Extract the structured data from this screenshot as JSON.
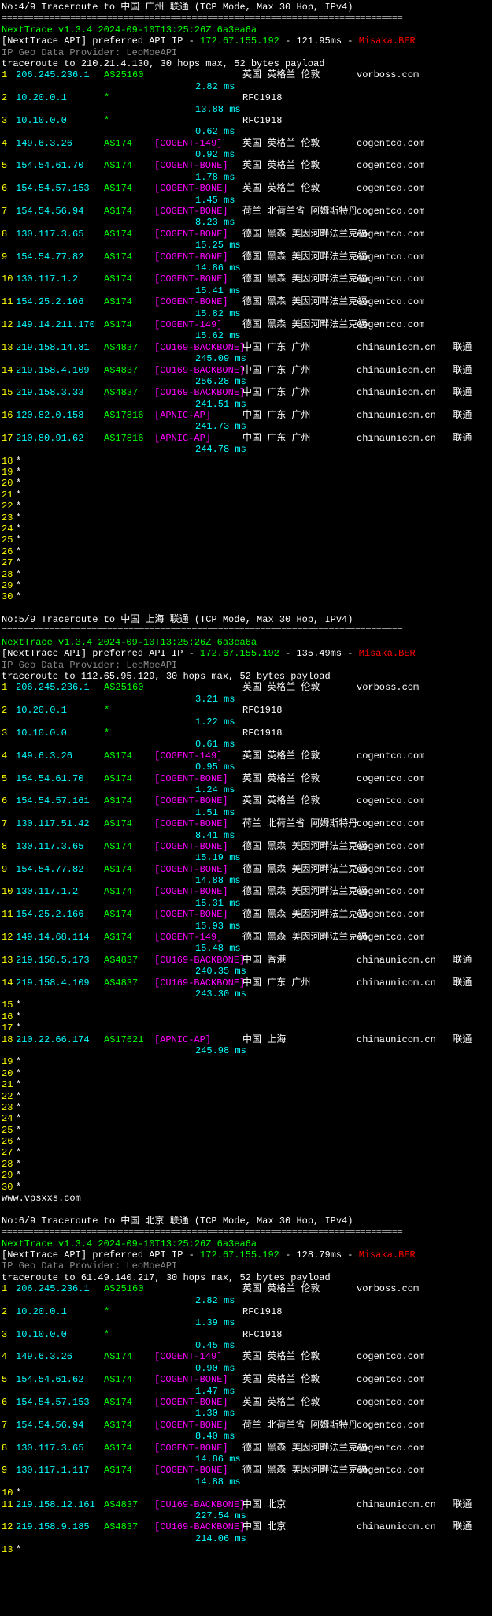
{
  "traces": [
    {
      "header": "No:4/9 Traceroute to 中国 广州 联通 (TCP Mode, Max 30 Hop, IPv4)",
      "nt": "NextTrace v1.3.4 2024-09-10T13:25:26Z 6a3ea6a",
      "api_pre": "[NextTrace API] preferred API IP - ",
      "api_ip": "172.67.155.192",
      "api_ms": " - 121.95ms - ",
      "api_host": "Misaka.BER",
      "prov": "IP Geo Data Provider: LeoMoeAPI",
      "target": "traceroute to 210.21.4.130, 30 hops max, 52 bytes payload",
      "hops": [
        {
          "n": "1",
          "ip": "206.245.236.1",
          "asn": "AS25160",
          "net": "",
          "loc": "英国 英格兰 伦敦",
          "dom": "vorboss.com",
          "ms": "2.82 ms"
        },
        {
          "n": "2",
          "ip": "10.20.0.1",
          "asn": "*",
          "net": "",
          "loc": "RFC1918",
          "dom": "",
          "ms": "13.88 ms"
        },
        {
          "n": "3",
          "ip": "10.10.0.0",
          "asn": "*",
          "net": "",
          "loc": "RFC1918",
          "dom": "",
          "ms": "0.62 ms"
        },
        {
          "n": "4",
          "ip": "149.6.3.26",
          "asn": "AS174",
          "net": "[COGENT-149]",
          "loc": "英国 英格兰 伦敦",
          "dom": "cogentco.com",
          "ms": "0.92 ms"
        },
        {
          "n": "5",
          "ip": "154.54.61.70",
          "asn": "AS174",
          "net": "[COGENT-BONE]",
          "loc": "英国 英格兰 伦敦",
          "dom": "cogentco.com",
          "ms": "1.78 ms"
        },
        {
          "n": "6",
          "ip": "154.54.57.153",
          "asn": "AS174",
          "net": "[COGENT-BONE]",
          "loc": "英国 英格兰 伦敦",
          "dom": "cogentco.com",
          "ms": "1.45 ms"
        },
        {
          "n": "7",
          "ip": "154.54.56.94",
          "asn": "AS174",
          "net": "[COGENT-BONE]",
          "loc": "荷兰 北荷兰省 阿姆斯特丹",
          "dom": "cogentco.com",
          "ms": "8.23 ms"
        },
        {
          "n": "8",
          "ip": "130.117.3.65",
          "asn": "AS174",
          "net": "[COGENT-BONE]",
          "loc": "德国 黑森 美因河畔法兰克福",
          "dom": "cogentco.com",
          "ms": "15.25 ms"
        },
        {
          "n": "9",
          "ip": "154.54.77.82",
          "asn": "AS174",
          "net": "[COGENT-BONE]",
          "loc": "德国 黑森 美因河畔法兰克福",
          "dom": "cogentco.com",
          "ms": "14.86 ms"
        },
        {
          "n": "10",
          "ip": "130.117.1.2",
          "asn": "AS174",
          "net": "[COGENT-BONE]",
          "loc": "德国 黑森 美因河畔法兰克福",
          "dom": "cogentco.com",
          "ms": "15.41 ms"
        },
        {
          "n": "11",
          "ip": "154.25.2.166",
          "asn": "AS174",
          "net": "[COGENT-BONE]",
          "loc": "德国 黑森 美因河畔法兰克福",
          "dom": "cogentco.com",
          "ms": "15.82 ms"
        },
        {
          "n": "12",
          "ip": "149.14.211.170",
          "asn": "AS174",
          "net": "[COGENT-149]",
          "loc": "德国 黑森 美因河畔法兰克福",
          "dom": "cogentco.com",
          "ms": "15.62 ms"
        },
        {
          "n": "13",
          "ip": "219.158.14.81",
          "asn": "AS4837",
          "net": "[CU169-BACKBONE]",
          "loc": "中国 广东 广州",
          "dom": "chinaunicom.cn",
          "ms": "245.09 ms",
          "extra": "联通"
        },
        {
          "n": "14",
          "ip": "219.158.4.109",
          "asn": "AS4837",
          "net": "[CU169-BACKBONE]",
          "loc": "中国 广东 广州",
          "dom": "chinaunicom.cn",
          "ms": "256.28 ms",
          "extra": "联通"
        },
        {
          "n": "15",
          "ip": "219.158.3.33",
          "asn": "AS4837",
          "net": "[CU169-BACKBONE]",
          "loc": "中国 广东 广州",
          "dom": "chinaunicom.cn",
          "ms": "241.51 ms",
          "extra": "联通"
        },
        {
          "n": "16",
          "ip": "120.82.0.158",
          "asn": "AS17816",
          "net": "[APNIC-AP]",
          "loc": "中国 广东 广州",
          "dom": "chinaunicom.cn",
          "ms": "241.73 ms",
          "extra": "联通"
        },
        {
          "n": "17",
          "ip": "210.80.91.62",
          "asn": "AS17816",
          "net": "[APNIC-AP]",
          "loc": "中国 广东 广州",
          "dom": "chinaunicom.cn",
          "ms": "244.78 ms",
          "extra": "联通"
        }
      ],
      "dead": [
        "18",
        "19",
        "20",
        "21",
        "22",
        "23",
        "24",
        "25",
        "26",
        "27",
        "28",
        "29",
        "30"
      ]
    },
    {
      "header": "No:5/9 Traceroute to 中国 上海 联通 (TCP Mode, Max 30 Hop, IPv4)",
      "nt": "NextTrace v1.3.4 2024-09-10T13:25:26Z 6a3ea6a",
      "api_pre": "[NextTrace API] preferred API IP - ",
      "api_ip": "172.67.155.192",
      "api_ms": " - 135.49ms - ",
      "api_host": "Misaka.BER",
      "prov": "IP Geo Data Provider: LeoMoeAPI",
      "target": "traceroute to 112.65.95.129, 30 hops max, 52 bytes payload",
      "hops": [
        {
          "n": "1",
          "ip": "206.245.236.1",
          "asn": "AS25160",
          "net": "",
          "loc": "英国 英格兰 伦敦",
          "dom": "vorboss.com",
          "ms": "3.21 ms"
        },
        {
          "n": "2",
          "ip": "10.20.0.1",
          "asn": "*",
          "net": "",
          "loc": "RFC1918",
          "dom": "",
          "ms": "1.22 ms"
        },
        {
          "n": "3",
          "ip": "10.10.0.0",
          "asn": "*",
          "net": "",
          "loc": "RFC1918",
          "dom": "",
          "ms": "0.61 ms"
        },
        {
          "n": "4",
          "ip": "149.6.3.26",
          "asn": "AS174",
          "net": "[COGENT-149]",
          "loc": "英国 英格兰 伦敦",
          "dom": "cogentco.com",
          "ms": "0.95 ms"
        },
        {
          "n": "5",
          "ip": "154.54.61.70",
          "asn": "AS174",
          "net": "[COGENT-BONE]",
          "loc": "英国 英格兰 伦敦",
          "dom": "cogentco.com",
          "ms": "1.24 ms"
        },
        {
          "n": "6",
          "ip": "154.54.57.161",
          "asn": "AS174",
          "net": "[COGENT-BONE]",
          "loc": "英国 英格兰 伦敦",
          "dom": "cogentco.com",
          "ms": "1.51 ms"
        },
        {
          "n": "7",
          "ip": "130.117.51.42",
          "asn": "AS174",
          "net": "[COGENT-BONE]",
          "loc": "荷兰 北荷兰省 阿姆斯特丹",
          "dom": "cogentco.com",
          "ms": "8.41 ms"
        },
        {
          "n": "8",
          "ip": "130.117.3.65",
          "asn": "AS174",
          "net": "[COGENT-BONE]",
          "loc": "德国 黑森 美因河畔法兰克福",
          "dom": "cogentco.com",
          "ms": "15.19 ms"
        },
        {
          "n": "9",
          "ip": "154.54.77.82",
          "asn": "AS174",
          "net": "[COGENT-BONE]",
          "loc": "德国 黑森 美因河畔法兰克福",
          "dom": "cogentco.com",
          "ms": "14.88 ms"
        },
        {
          "n": "10",
          "ip": "130.117.1.2",
          "asn": "AS174",
          "net": "[COGENT-BONE]",
          "loc": "德国 黑森 美因河畔法兰克福",
          "dom": "cogentco.com",
          "ms": "15.31 ms"
        },
        {
          "n": "11",
          "ip": "154.25.2.166",
          "asn": "AS174",
          "net": "[COGENT-BONE]",
          "loc": "德国 黑森 美因河畔法兰克福",
          "dom": "cogentco.com",
          "ms": "15.93 ms"
        },
        {
          "n": "12",
          "ip": "149.14.68.114",
          "asn": "AS174",
          "net": "[COGENT-149]",
          "loc": "德国 黑森 美因河畔法兰克福",
          "dom": "cogentco.com",
          "ms": "15.48 ms"
        },
        {
          "n": "13",
          "ip": "219.158.5.173",
          "asn": "AS4837",
          "net": "[CU169-BACKBONE]",
          "loc": "中国 香港",
          "dom": "chinaunicom.cn",
          "ms": "240.35 ms",
          "extra": "联通"
        },
        {
          "n": "14",
          "ip": "219.158.4.109",
          "asn": "AS4837",
          "net": "[CU169-BACKBONE]",
          "loc": "中国 广东 广州",
          "dom": "chinaunicom.cn",
          "ms": "243.30 ms",
          "extra": "联通"
        }
      ],
      "dead1": [
        "15",
        "16",
        "17"
      ],
      "hops2": [
        {
          "n": "18",
          "ip": "210.22.66.174",
          "asn": "AS17621",
          "net": "[APNIC-AP]",
          "loc": "中国 上海",
          "dom": "chinaunicom.cn",
          "ms": "245.98 ms",
          "extra": "联通"
        }
      ],
      "dead": [
        "19",
        "20",
        "21",
        "22",
        "23",
        "24",
        "25",
        "26",
        "27",
        "28",
        "29",
        "30"
      ],
      "watermark": "www.vpsxxs.com"
    },
    {
      "header": "No:6/9 Traceroute to 中国 北京 联通 (TCP Mode, Max 30 Hop, IPv4)",
      "nt": "NextTrace v1.3.4 2024-09-10T13:25:26Z 6a3ea6a",
      "api_pre": "[NextTrace API] preferred API IP - ",
      "api_ip": "172.67.155.192",
      "api_ms": " - 128.79ms - ",
      "api_host": "Misaka.BER",
      "prov": "IP Geo Data Provider: LeoMoeAPI",
      "target": "traceroute to 61.49.140.217, 30 hops max, 52 bytes payload",
      "hops": [
        {
          "n": "1",
          "ip": "206.245.236.1",
          "asn": "AS25160",
          "net": "",
          "loc": "英国 英格兰 伦敦",
          "dom": "vorboss.com",
          "ms": "2.82 ms"
        },
        {
          "n": "2",
          "ip": "10.20.0.1",
          "asn": "*",
          "net": "",
          "loc": "RFC1918",
          "dom": "",
          "ms": "1.39 ms"
        },
        {
          "n": "3",
          "ip": "10.10.0.0",
          "asn": "*",
          "net": "",
          "loc": "RFC1918",
          "dom": "",
          "ms": "0.45 ms"
        },
        {
          "n": "4",
          "ip": "149.6.3.26",
          "asn": "AS174",
          "net": "[COGENT-149]",
          "loc": "英国 英格兰 伦敦",
          "dom": "cogentco.com",
          "ms": "0.90 ms"
        },
        {
          "n": "5",
          "ip": "154.54.61.62",
          "asn": "AS174",
          "net": "[COGENT-BONE]",
          "loc": "英国 英格兰 伦敦",
          "dom": "cogentco.com",
          "ms": "1.47 ms"
        },
        {
          "n": "6",
          "ip": "154.54.57.153",
          "asn": "AS174",
          "net": "[COGENT-BONE]",
          "loc": "英国 英格兰 伦敦",
          "dom": "cogentco.com",
          "ms": "1.30 ms"
        },
        {
          "n": "7",
          "ip": "154.54.56.94",
          "asn": "AS174",
          "net": "[COGENT-BONE]",
          "loc": "荷兰 北荷兰省 阿姆斯特丹",
          "dom": "cogentco.com",
          "ms": "8.40 ms"
        },
        {
          "n": "8",
          "ip": "130.117.3.65",
          "asn": "AS174",
          "net": "[COGENT-BONE]",
          "loc": "德国 黑森 美因河畔法兰克福",
          "dom": "cogentco.com",
          "ms": "14.86 ms"
        },
        {
          "n": "9",
          "ip": "130.117.1.117",
          "asn": "AS174",
          "net": "[COGENT-BONE]",
          "loc": "德国 黑森 美因河畔法兰克福",
          "dom": "cogentco.com",
          "ms": "14.88 ms"
        }
      ],
      "dead1": [
        "10"
      ],
      "hops2": [
        {
          "n": "11",
          "ip": "219.158.12.161",
          "asn": "AS4837",
          "net": "[CU169-BACKBONE]",
          "loc": "中国 北京",
          "dom": "chinaunicom.cn",
          "ms": "227.54 ms",
          "extra": "联通"
        },
        {
          "n": "12",
          "ip": "219.158.9.185",
          "asn": "AS4837",
          "net": "[CU169-BACKBONE]",
          "loc": "中国 北京",
          "dom": "chinaunicom.cn",
          "ms": "214.06 ms",
          "extra": "联通"
        }
      ],
      "dead": [
        "13"
      ]
    }
  ]
}
